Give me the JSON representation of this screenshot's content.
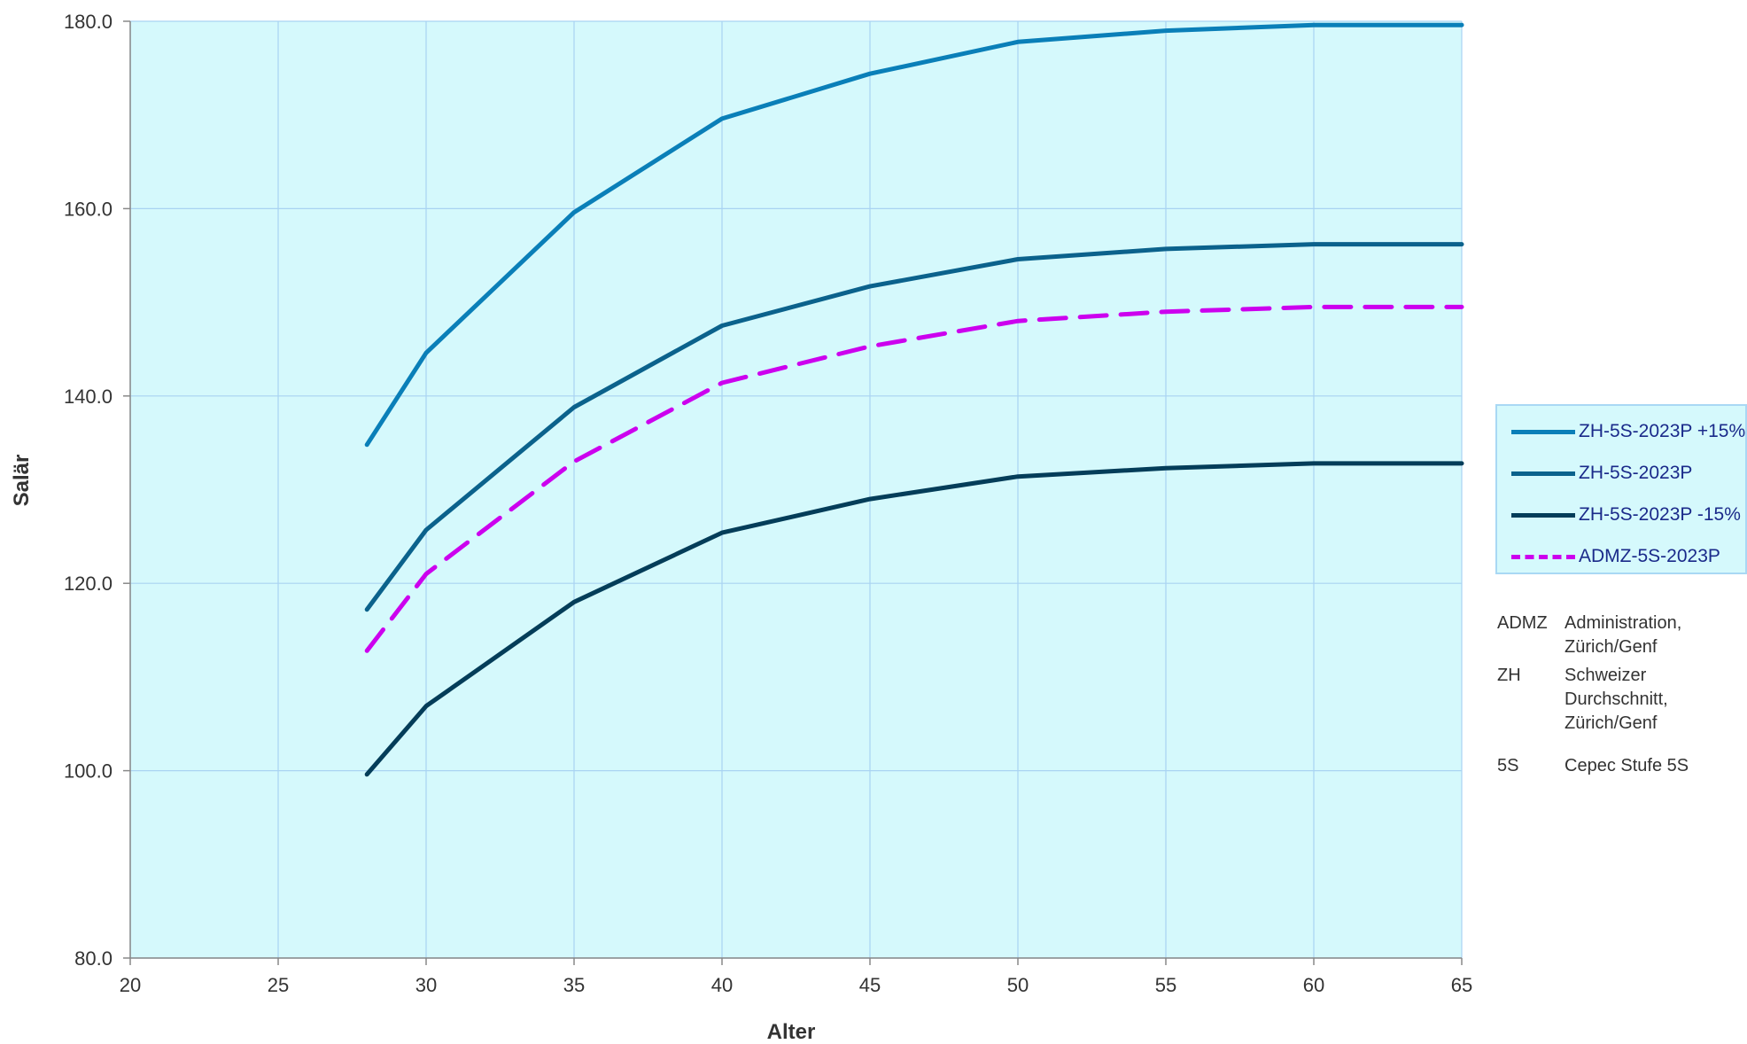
{
  "chart_data": {
    "type": "line",
    "xlabel": "Alter",
    "ylabel": "Salär",
    "xlim": [
      20,
      65
    ],
    "ylim": [
      80,
      180
    ],
    "x_ticks": [
      "20",
      "25",
      "30",
      "35",
      "40",
      "45",
      "50",
      "55",
      "60",
      "65"
    ],
    "y_ticks": [
      "80.0",
      "100.0",
      "120.0",
      "140.0",
      "160.0",
      "180.0"
    ],
    "grid": true,
    "legend_position": "right",
    "plot_background": "#d5f9fc",
    "x": [
      28,
      30,
      35,
      40,
      45,
      50,
      55,
      60,
      65
    ],
    "series": [
      {
        "name": "ZH-5S-2023P +15%",
        "color": "#0a7fb8",
        "dash": false,
        "values": [
          134.8,
          144.6,
          159.6,
          169.6,
          174.4,
          177.8,
          179.0,
          179.6,
          179.6
        ]
      },
      {
        "name": "ZH-5S-2023P",
        "color": "#0b628c",
        "dash": false,
        "values": [
          117.2,
          125.7,
          138.8,
          147.5,
          151.7,
          154.6,
          155.7,
          156.2,
          156.2
        ]
      },
      {
        "name": "ZH-5S-2023P -15%",
        "color": "#043d59",
        "dash": false,
        "values": [
          99.6,
          106.9,
          118.0,
          125.4,
          129.0,
          131.4,
          132.3,
          132.8,
          132.8
        ]
      },
      {
        "name": "ADMZ-5S-2023P",
        "color": "#cc00ee",
        "dash": true,
        "values": [
          112.8,
          121.0,
          133.0,
          141.4,
          145.3,
          148.0,
          149.0,
          149.5,
          149.5
        ]
      }
    ]
  },
  "glossary": [
    {
      "abbr": "ADMZ",
      "desc": "Administration,\nZürich/Genf"
    },
    {
      "abbr": "ZH",
      "desc": "Schweizer Durchschnitt,\nZürich/Genf"
    },
    {
      "abbr": "5S",
      "desc": "Cepec Stufe 5S"
    }
  ]
}
